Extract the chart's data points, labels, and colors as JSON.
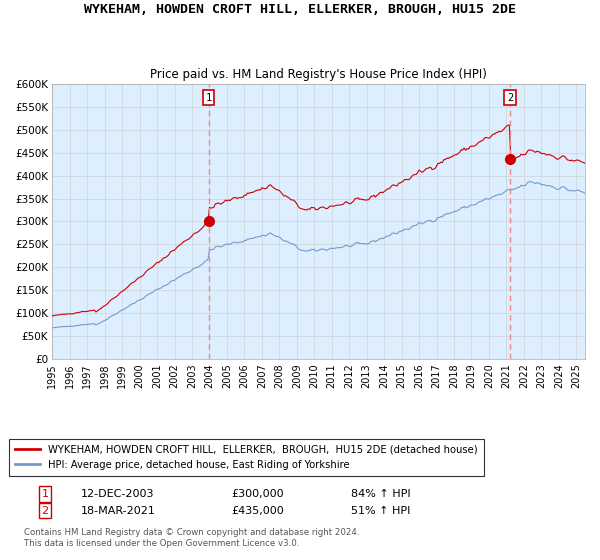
{
  "title": "WYKEHAM, HOWDEN CROFT HILL, ELLERKER, BROUGH, HU15 2DE",
  "subtitle": "Price paid vs. HM Land Registry's House Price Index (HPI)",
  "ylabel_ticks": [
    "£0",
    "£50K",
    "£100K",
    "£150K",
    "£200K",
    "£250K",
    "£300K",
    "£350K",
    "£400K",
    "£450K",
    "£500K",
    "£550K",
    "£600K"
  ],
  "ylim": [
    0,
    600000
  ],
  "xlim_start": 1995.0,
  "xlim_end": 2025.5,
  "sale1_x": 2003.958,
  "sale1_y": 300000,
  "sale2_x": 2021.208,
  "sale2_y": 435000,
  "legend_red": "WYKEHAM, HOWDEN CROFT HILL,  ELLERKER,  BROUGH,  HU15 2DE (detached house)",
  "legend_blue": "HPI: Average price, detached house, East Riding of Yorkshire",
  "annotation1": [
    "1",
    "12-DEC-2003",
    "£300,000",
    "84% ↑ HPI"
  ],
  "annotation2": [
    "2",
    "18-MAR-2021",
    "£435,000",
    "51% ↑ HPI"
  ],
  "footer": "Contains HM Land Registry data © Crown copyright and database right 2024.\nThis data is licensed under the Open Government Licence v3.0.",
  "red_color": "#cc0000",
  "blue_color": "#7799cc",
  "vline_color": "#ee8888",
  "grid_color": "#cccccc",
  "plot_bg_color": "#ddeeff",
  "background_color": "#ffffff"
}
